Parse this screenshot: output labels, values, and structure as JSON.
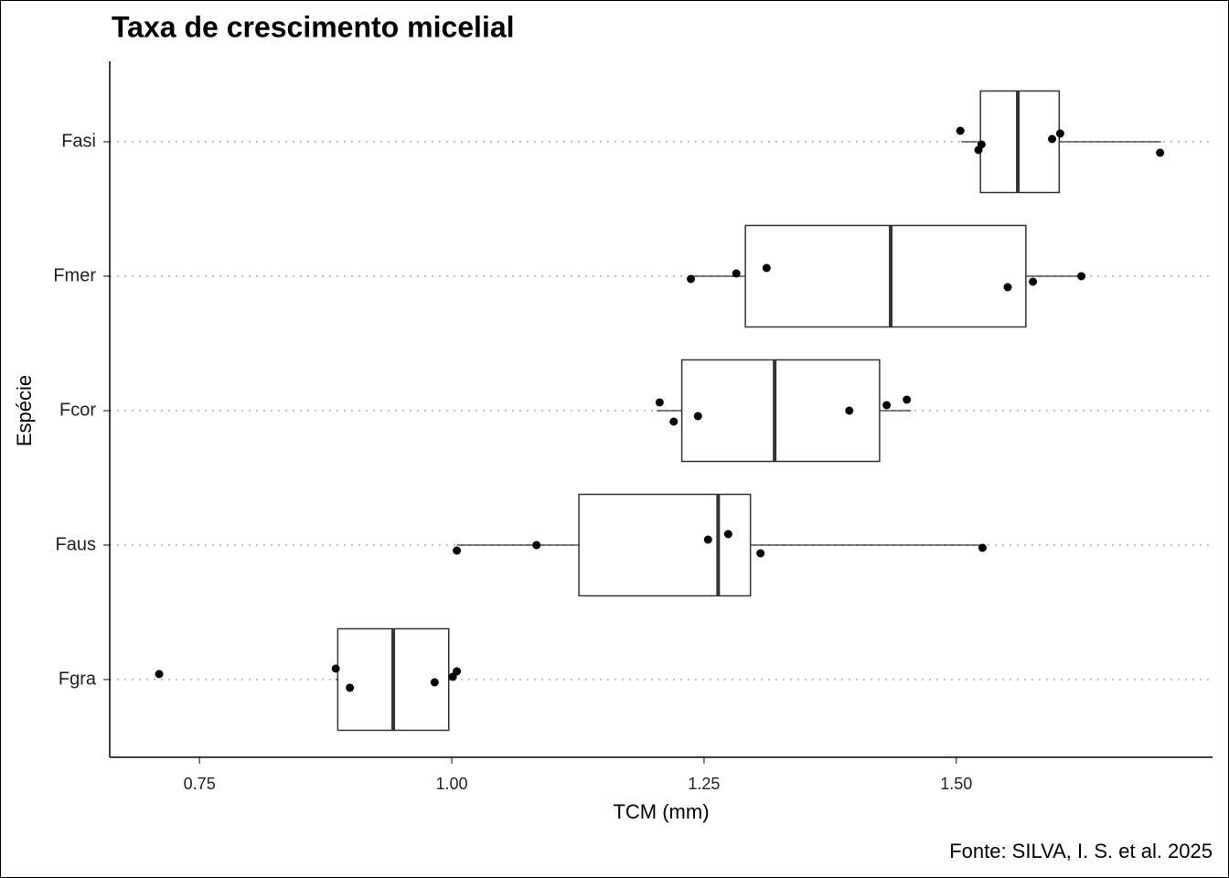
{
  "chart_data": {
    "type": "boxplot",
    "title": "Taxa de crescimento micelial",
    "x_label": "TCM (mm)",
    "y_label": "Espécie",
    "caption": "Fonte: SILVA, I. S. et al. 2025",
    "categories": [
      "Fasi",
      "Fmer",
      "Fcor",
      "Faus",
      "Fgra"
    ],
    "boxes": [
      {
        "min": 1.505,
        "q1": 1.524,
        "median": 1.561,
        "q3": 1.602,
        "max": 1.703
      },
      {
        "min": 1.237,
        "q1": 1.291,
        "median": 1.435,
        "q3": 1.569,
        "max": 1.624
      },
      {
        "min": 1.203,
        "q1": 1.228,
        "median": 1.32,
        "q3": 1.424,
        "max": 1.455
      },
      {
        "min": 1.005,
        "q1": 1.126,
        "median": 1.264,
        "q3": 1.296,
        "max": 1.524
      },
      {
        "min": 0.885,
        "q1": 0.887,
        "median": 0.942,
        "q3": 0.997,
        "max": 1.004
      }
    ],
    "points": [
      [
        1.504,
        1.522,
        1.525,
        1.595,
        1.603,
        1.702
      ],
      [
        1.237,
        1.282,
        1.312,
        1.551,
        1.576,
        1.624
      ],
      [
        1.206,
        1.22,
        1.244,
        1.394,
        1.431,
        1.451
      ],
      [
        1.005,
        1.084,
        1.254,
        1.274,
        1.306,
        1.526
      ],
      [
        0.71,
        0.885,
        0.899,
        0.983,
        1.001,
        1.005
      ]
    ],
    "box_color": "#333333",
    "point_color": "#000000",
    "xlim": [
      0.661,
      1.754
    ],
    "xticks": [
      0.75,
      {
        "value": 1.0,
        "label": "1.00"
      },
      1.25,
      {
        "value": 1.5,
        "label": "1.50"
      }
    ],
    "grid": "dotted"
  }
}
